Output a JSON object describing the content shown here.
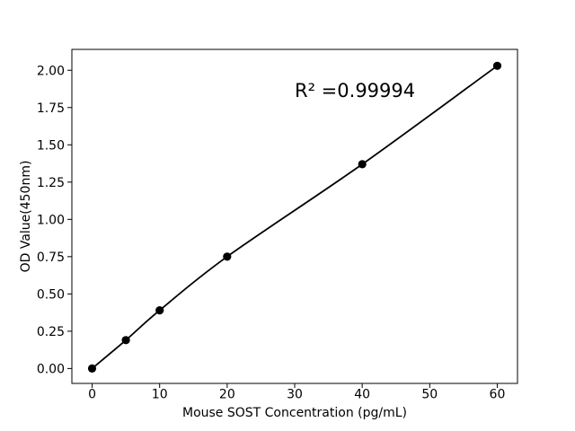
{
  "figure": {
    "background": "#ffffff"
  },
  "chart_data": {
    "type": "scatter",
    "title": "",
    "xlabel": "Mouse SOST Concentration (pg/mL)",
    "ylabel": "OD Value(450nm)",
    "x": [
      0,
      5,
      10,
      20,
      40,
      60
    ],
    "y": [
      0.0,
      0.19,
      0.39,
      0.75,
      1.37,
      2.03
    ],
    "fit_line": true,
    "annotation": {
      "text": "R² =0.99994",
      "x": 30,
      "y": 1.82
    },
    "xticks": [
      0,
      10,
      20,
      30,
      40,
      50,
      60
    ],
    "yticks": [
      0,
      0.25,
      0.5,
      0.75,
      1,
      1.25,
      1.5,
      1.75,
      2
    ],
    "ytick_decimals": 2,
    "xlim": [
      -3,
      63
    ],
    "ylim": [
      -0.1,
      2.14
    ],
    "grid": false,
    "legend": false,
    "line_color": "#000000",
    "marker_color": "#000000",
    "text_color": "#000000",
    "spine_color": "#000000"
  }
}
